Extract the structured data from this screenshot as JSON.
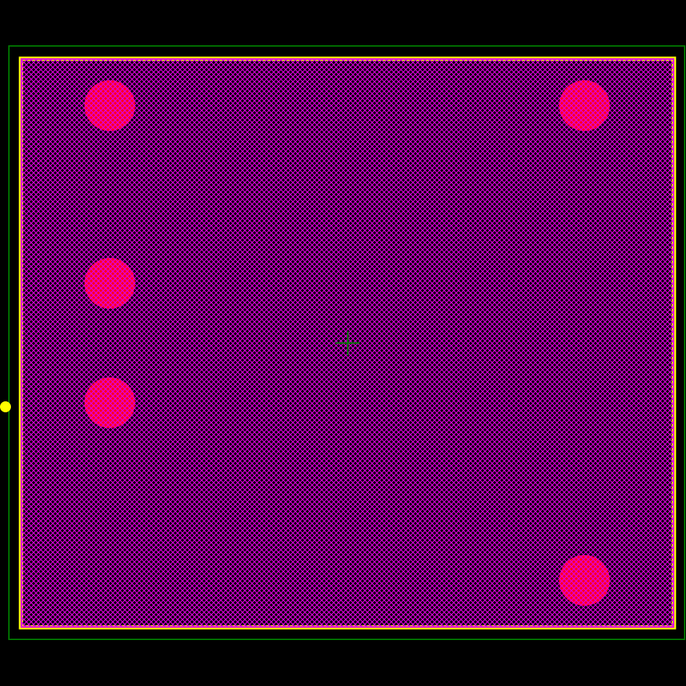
{
  "view": {
    "background_color": "#000000",
    "board_outline_color": "#007800",
    "courtyard_color": "#ffff00",
    "copper_fill_color": "#e000e0",
    "pad_color": "#ff0020",
    "origin_marker_color": "#ffff00",
    "crosshair_color": "#007800",
    "fill_style": "crosshatch",
    "pad_count": 5,
    "icons": [
      "crosshair-icon",
      "origin-marker-icon"
    ]
  }
}
